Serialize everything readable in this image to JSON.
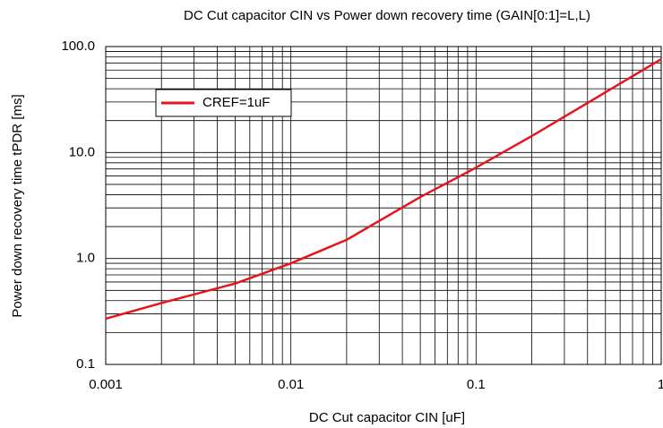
{
  "chart_data": {
    "type": "line",
    "title": "DC Cut capacitor CIN vs Power down recovery time (GAIN[0:1]=L,L)",
    "x_label": "DC Cut capacitor CIN [uF]",
    "y_label": "Power down recovery time tPDR [ms]",
    "x_scale": "log",
    "y_scale": "log",
    "grid": true,
    "legend": "upper left",
    "x": [
      0.001,
      0.002,
      0.005,
      0.01,
      0.02,
      0.05,
      0.1,
      0.2,
      0.5,
      1
    ],
    "series": [
      {
        "name": "CREF=1uF",
        "color": "#e8141b",
        "values": [
          0.27,
          0.38,
          0.58,
          0.9,
          1.5,
          3.8,
          7.2,
          14.3,
          37,
          76
        ]
      }
    ],
    "xlim": [
      0.001,
      1
    ],
    "ylim": [
      0.1,
      100
    ],
    "xticks": [
      0.001,
      0.01,
      0.1,
      1
    ],
    "yticks": [
      0.1,
      {
        "value": 1,
        "label": "1.0"
      },
      {
        "value": 10,
        "label": "10.0"
      },
      {
        "value": 100,
        "label": "100.0"
      }
    ],
    "xminorticks": [
      0.002,
      0.003,
      0.004,
      0.005,
      0.006,
      0.007,
      0.008,
      0.009,
      0.02,
      0.03,
      0.04,
      0.05,
      0.06,
      0.07,
      0.08,
      0.09,
      0.2,
      0.3,
      0.4,
      0.5,
      0.6,
      0.7,
      0.8,
      0.9
    ],
    "yminorticks": [
      0.2,
      0.3,
      0.4,
      0.5,
      0.6,
      0.7,
      0.8,
      0.9,
      2,
      3,
      4,
      5,
      6,
      7,
      8,
      9,
      20,
      30,
      40,
      50,
      60,
      70,
      80,
      90
    ]
  }
}
